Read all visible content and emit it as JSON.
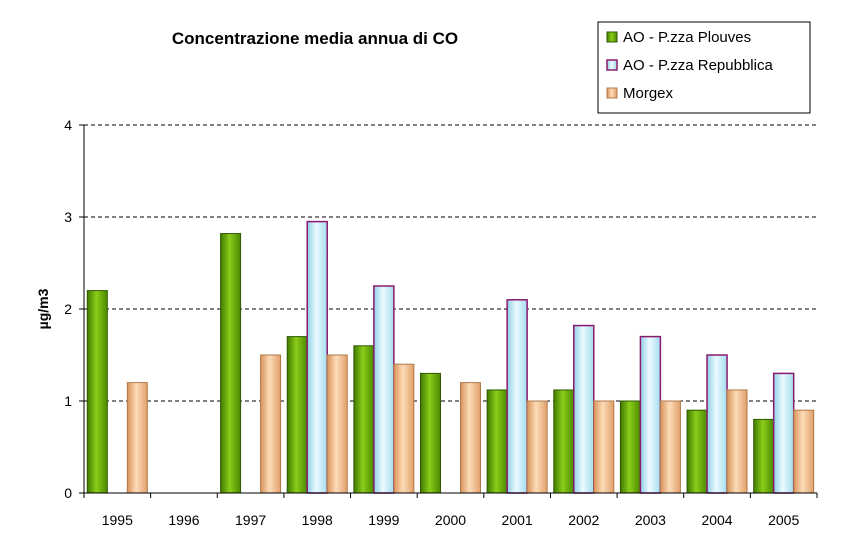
{
  "chart_data": {
    "type": "bar",
    "title": "Concentrazione media annua di CO",
    "xlabel": "",
    "ylabel": "µg/m3",
    "ylim": [
      0,
      4
    ],
    "yticks": [
      "0",
      "1",
      "2",
      "3",
      "4"
    ],
    "grid": true,
    "legend_position": "top-right",
    "categories": [
      "1995",
      "1996",
      "1997",
      "1998",
      "1999",
      "2000",
      "2001",
      "2002",
      "2003",
      "2004",
      "2005"
    ],
    "series": [
      {
        "name": "AO - P.zza Plouves",
        "color": "#5a9e00",
        "values": [
          2.2,
          null,
          2.82,
          1.7,
          1.6,
          1.3,
          1.12,
          1.12,
          1.0,
          0.9,
          0.8
        ]
      },
      {
        "name": "AO - P.zza Repubblica",
        "color": "#bfe9f5",
        "border": "#8b1a6e",
        "values": [
          null,
          null,
          null,
          2.95,
          2.25,
          null,
          2.1,
          1.82,
          1.7,
          1.5,
          1.3
        ]
      },
      {
        "name": "Morgex",
        "color": "#f2c08f",
        "values": [
          1.2,
          null,
          1.5,
          1.5,
          1.4,
          1.2,
          1.0,
          1.0,
          1.0,
          1.12,
          0.9
        ]
      }
    ]
  }
}
